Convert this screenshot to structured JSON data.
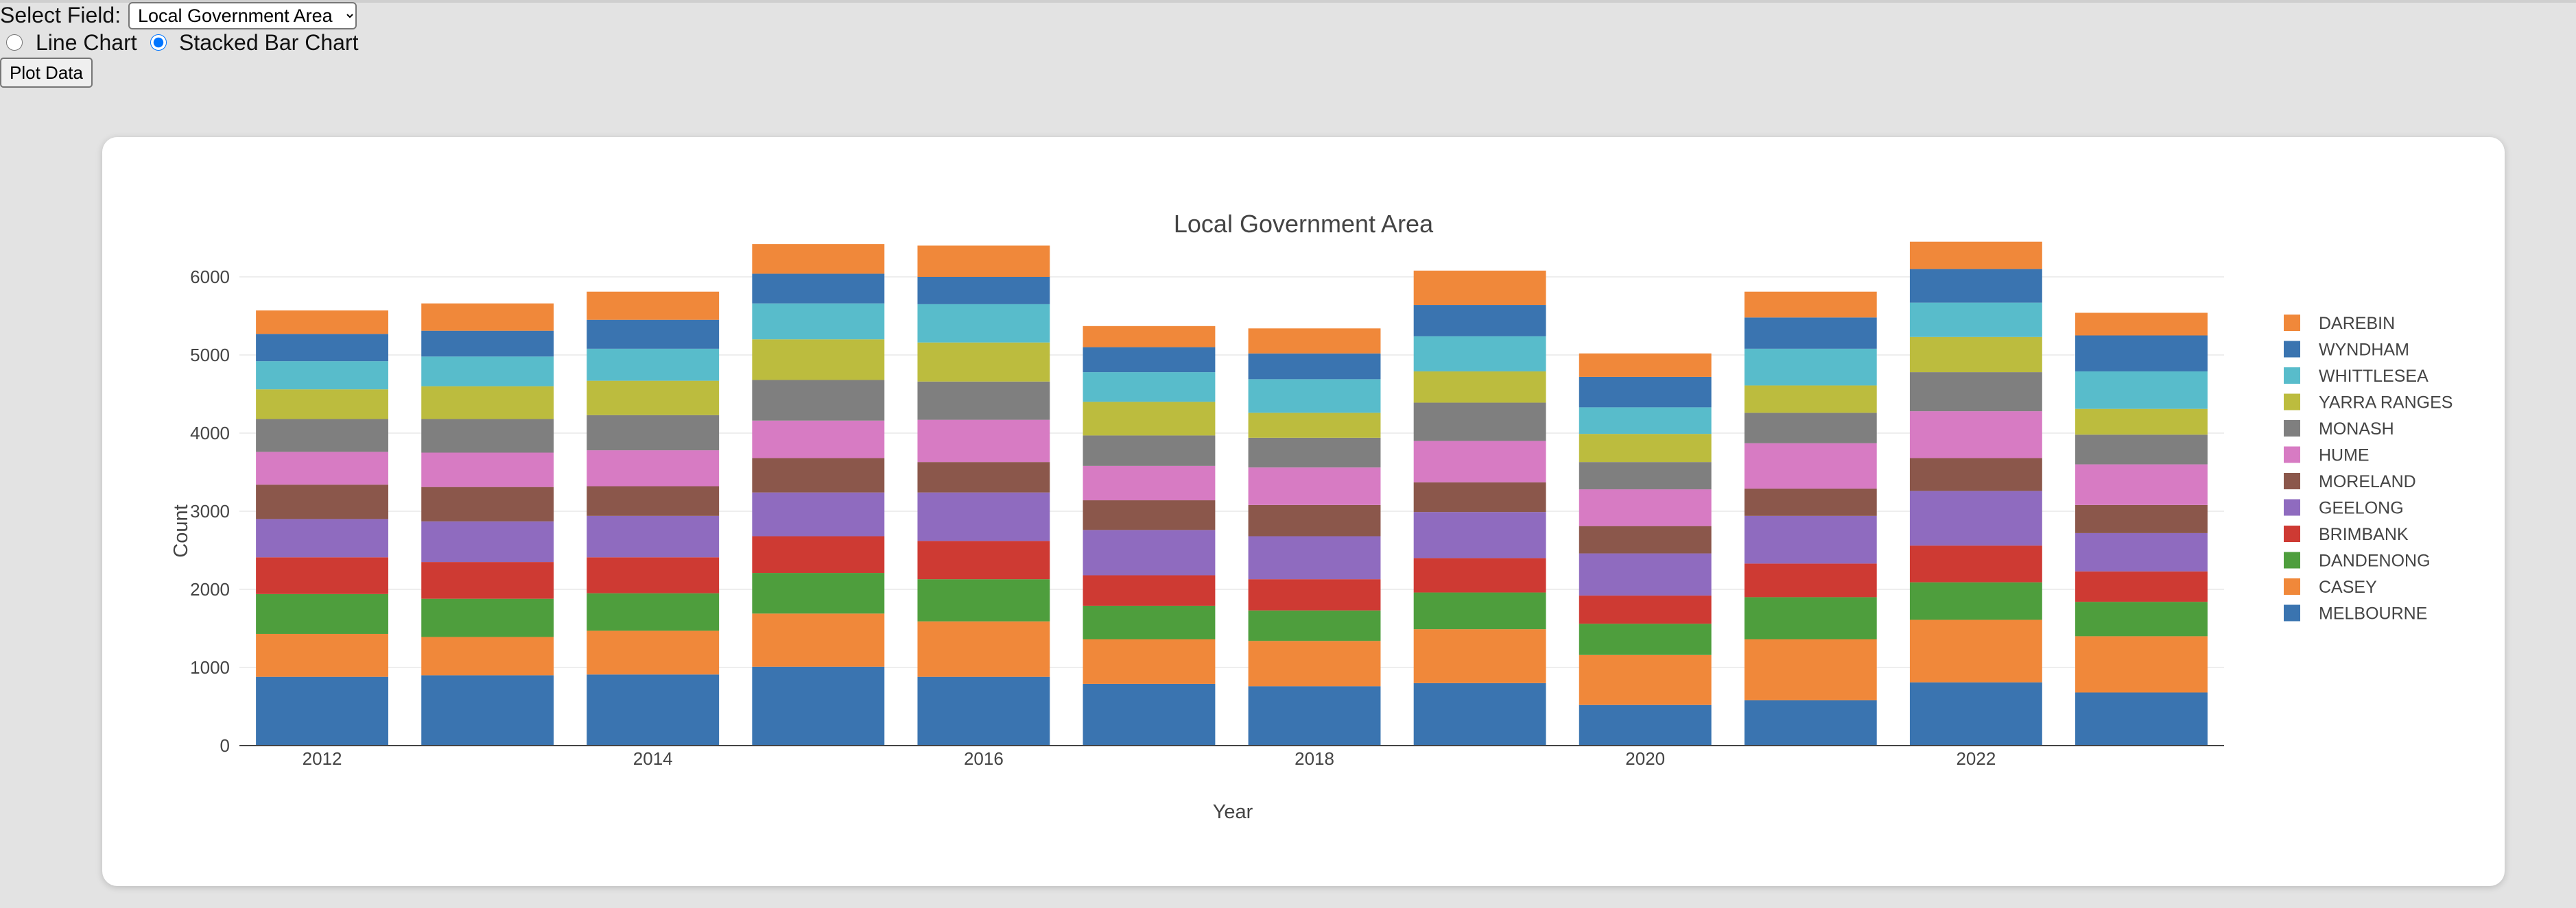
{
  "controls": {
    "select_label": "Select Field:",
    "select_value": "Local Government Area",
    "radio_line_label": "Line Chart",
    "radio_bar_label": "Stacked Bar Chart",
    "selected_chart": "Stacked Bar Chart",
    "plot_button_label": "Plot Data"
  },
  "chart_data": {
    "type": "bar",
    "stacked": true,
    "title": "Local Government Area",
    "xlabel": "Year",
    "ylabel": "Count",
    "ylim": [
      0,
      7000
    ],
    "yticks": [
      0,
      1000,
      2000,
      3000,
      4000,
      5000,
      6000
    ],
    "xticks": [
      "2012",
      "2014",
      "2016",
      "2018",
      "2020",
      "2022"
    ],
    "grid": true,
    "legend_placement": "right",
    "categories": [
      "2012",
      "2013",
      "2014",
      "2015",
      "2016",
      "2017",
      "2018",
      "2019",
      "2020",
      "2021",
      "2022",
      "2023"
    ],
    "series": [
      {
        "name": "MELBOURNE",
        "color": "#3a74b0",
        "values": [
          880,
          900,
          910,
          1010,
          880,
          790,
          760,
          800,
          520,
          580,
          810,
          680
        ]
      },
      {
        "name": "CASEY",
        "color": "#f0883a",
        "values": [
          550,
          490,
          560,
          680,
          710,
          570,
          580,
          690,
          640,
          780,
          800,
          720
        ]
      },
      {
        "name": "DANDENONG",
        "color": "#4e9e3d",
        "values": [
          510,
          490,
          480,
          520,
          540,
          430,
          390,
          470,
          400,
          540,
          480,
          440
        ]
      },
      {
        "name": "BRIMBANK",
        "color": "#ce3a33",
        "values": [
          470,
          470,
          460,
          470,
          490,
          390,
          400,
          440,
          360,
          430,
          470,
          390
        ]
      },
      {
        "name": "GEELONG",
        "color": "#8f6bbf",
        "values": [
          490,
          520,
          530,
          560,
          620,
          580,
          550,
          590,
          540,
          610,
          700,
          490
        ]
      },
      {
        "name": "MORELAND",
        "color": "#8b574b",
        "values": [
          440,
          440,
          380,
          440,
          390,
          380,
          400,
          380,
          350,
          350,
          420,
          360
        ]
      },
      {
        "name": "HUME",
        "color": "#d77bc3",
        "values": [
          420,
          440,
          460,
          480,
          540,
          440,
          480,
          530,
          470,
          580,
          600,
          520
        ]
      },
      {
        "name": "MONASH",
        "color": "#7f7f7f",
        "values": [
          420,
          430,
          450,
          520,
          490,
          390,
          380,
          490,
          350,
          390,
          500,
          380
        ]
      },
      {
        "name": "YARRA RANGES",
        "color": "#bcbc3e",
        "values": [
          380,
          420,
          440,
          520,
          500,
          430,
          320,
          400,
          360,
          350,
          450,
          330
        ]
      },
      {
        "name": "WHITTLESEA",
        "color": "#58bccb",
        "values": [
          360,
          380,
          410,
          460,
          490,
          380,
          430,
          450,
          340,
          470,
          440,
          480
        ]
      },
      {
        "name": "WYNDHAM",
        "color": "#3a74b0",
        "values": [
          350,
          330,
          370,
          380,
          350,
          320,
          330,
          400,
          390,
          400,
          430,
          460
        ]
      },
      {
        "name": "DAREBIN",
        "color": "#f0883a",
        "values": [
          300,
          350,
          360,
          380,
          400,
          270,
          320,
          440,
          300,
          330,
          350,
          290
        ]
      }
    ]
  }
}
